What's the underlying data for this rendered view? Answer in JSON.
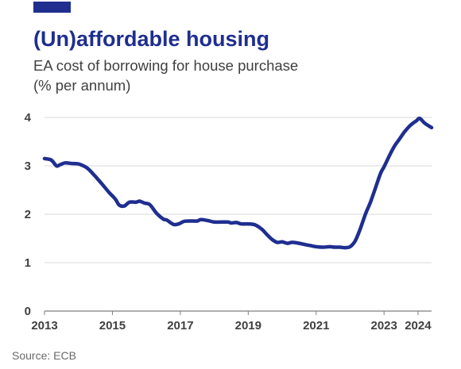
{
  "colors": {
    "accent": "#1F2E8F",
    "line": "#1F2E8F",
    "grid": "#D9D9D9",
    "axis": "#7F7F7F"
  },
  "header": {
    "title": "(Un)affordable housing",
    "subtitle_line1": "EA cost of borrowing for house purchase",
    "subtitle_line2": "(% per annum)"
  },
  "footer": {
    "source": "Source: ECB"
  },
  "chart_data": {
    "type": "line",
    "title": "(Un)affordable housing",
    "subtitle": "EA cost of borrowing for house purchase (% per annum)",
    "xlabel": "",
    "ylabel": "",
    "xlim": [
      2013.0,
      2024.4
    ],
    "ylim": [
      0,
      4
    ],
    "yticks": [
      0,
      1,
      2,
      3,
      4
    ],
    "xticks": [
      {
        "value": 2013,
        "label": "2013"
      },
      {
        "value": 2015,
        "label": "2015"
      },
      {
        "value": 2017,
        "label": "2017"
      },
      {
        "value": 2019,
        "label": "2019"
      },
      {
        "value": 2021,
        "label": "2021"
      },
      {
        "value": 2023,
        "label": "2023"
      },
      {
        "value": 2024,
        "label": "2024"
      }
    ],
    "grid": {
      "horizontal": true,
      "vertical": false
    },
    "legend": "none",
    "series": [
      {
        "x": [
          2013.0,
          2013.2,
          2013.35,
          2013.45,
          2013.6,
          2013.8,
          2014.0,
          2014.2,
          2014.3,
          2014.5,
          2014.7,
          2014.9,
          2015.0,
          2015.1,
          2015.2,
          2015.35,
          2015.5,
          2015.7,
          2015.8,
          2015.95,
          2016.1,
          2016.3,
          2016.5,
          2016.6,
          2016.8,
          2016.95,
          2017.1,
          2017.3,
          2017.5,
          2017.6,
          2017.8,
          2018.0,
          2018.2,
          2018.4,
          2018.5,
          2018.65,
          2018.8,
          2019.0,
          2019.2,
          2019.4,
          2019.55,
          2019.7,
          2019.85,
          2020.0,
          2020.15,
          2020.3,
          2020.5,
          2020.7,
          2020.85,
          2021.0,
          2021.2,
          2021.4,
          2021.55,
          2021.7,
          2021.85,
          2022.0,
          2022.15,
          2022.3,
          2022.45,
          2022.6,
          2022.75,
          2022.9,
          2023.0,
          2023.15,
          2023.3,
          2023.45,
          2023.6,
          2023.75,
          2023.85,
          2023.95,
          2024.05,
          2024.2,
          2024.4
        ],
        "y": [
          3.15,
          3.12,
          3.0,
          3.02,
          3.06,
          3.05,
          3.04,
          2.98,
          2.93,
          2.78,
          2.62,
          2.45,
          2.38,
          2.3,
          2.19,
          2.17,
          2.25,
          2.25,
          2.27,
          2.23,
          2.2,
          2.02,
          1.9,
          1.88,
          1.79,
          1.8,
          1.85,
          1.86,
          1.86,
          1.89,
          1.87,
          1.84,
          1.84,
          1.84,
          1.82,
          1.83,
          1.8,
          1.8,
          1.78,
          1.69,
          1.58,
          1.48,
          1.42,
          1.43,
          1.4,
          1.42,
          1.4,
          1.37,
          1.35,
          1.33,
          1.32,
          1.33,
          1.32,
          1.32,
          1.31,
          1.33,
          1.45,
          1.7,
          2.0,
          2.25,
          2.55,
          2.85,
          2.98,
          3.2,
          3.4,
          3.55,
          3.7,
          3.82,
          3.88,
          3.93,
          3.98,
          3.88,
          3.79
        ]
      }
    ]
  }
}
